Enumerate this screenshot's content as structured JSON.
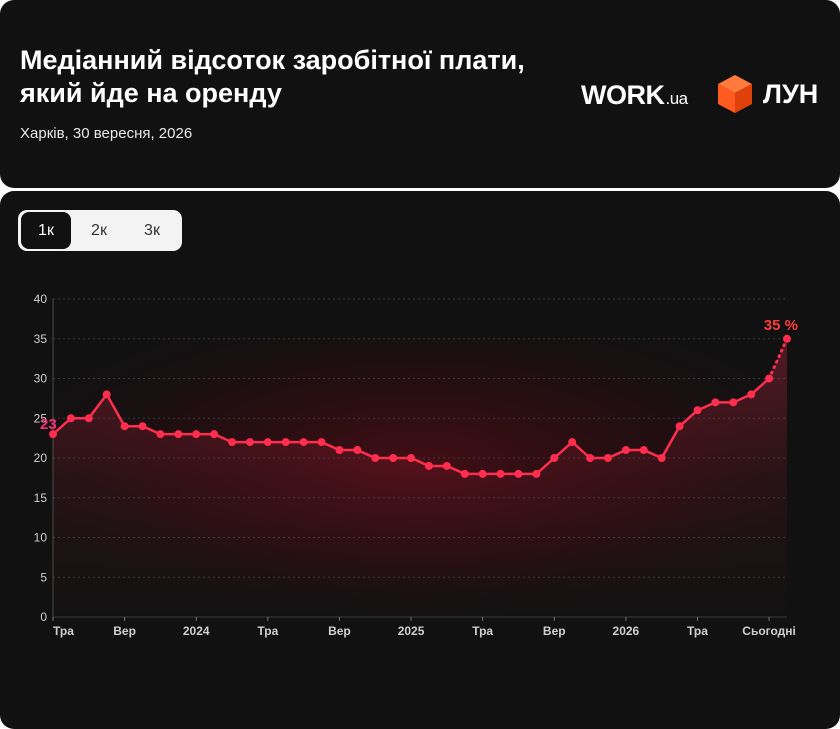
{
  "header": {
    "title": "Медіанний відсоток заробітної плати, який йде на оренду",
    "subtitle": "Харків, 30 вересня, 2026",
    "logo_work_main": "WORK",
    "logo_work_suffix": ".ua",
    "logo_lun": "ЛУН"
  },
  "tabs": [
    {
      "label": "1к",
      "active": true
    },
    {
      "label": "2к",
      "active": false
    },
    {
      "label": "3к",
      "active": false
    }
  ],
  "colors": {
    "background": "#121111",
    "line": "#ff2e4f",
    "start_label": "#ff2e7a",
    "end_label": "#ff3b3b",
    "lun_orange": "#ff5a1f"
  },
  "chart_data": {
    "type": "line",
    "title": "",
    "xlabel": "",
    "ylabel": "",
    "ylim": [
      0,
      40
    ],
    "yticks": [
      0,
      5,
      10,
      15,
      20,
      25,
      30,
      35,
      40
    ],
    "grid": true,
    "x_tick_labels": [
      {
        "i": 0,
        "label": "Тра"
      },
      {
        "i": 4,
        "label": "Вер"
      },
      {
        "i": 8,
        "label": "2024"
      },
      {
        "i": 12,
        "label": "Тра"
      },
      {
        "i": 16,
        "label": "Вер"
      },
      {
        "i": 20,
        "label": "2025"
      },
      {
        "i": 24,
        "label": "Тра"
      },
      {
        "i": 28,
        "label": "Вер"
      },
      {
        "i": 32,
        "label": "2026"
      },
      {
        "i": 36,
        "label": "Тра"
      },
      {
        "i": 40,
        "label": "Сьогодні"
      }
    ],
    "series": [
      {
        "values": [
          23,
          25,
          25,
          28,
          24,
          24,
          23,
          23,
          23,
          23,
          22,
          22,
          22,
          22,
          22,
          22,
          21,
          21,
          20,
          20,
          20,
          19,
          19,
          18,
          18,
          18,
          18,
          18,
          20,
          22,
          20,
          20,
          21,
          21,
          20,
          24,
          26,
          27,
          27,
          28,
          30,
          35
        ],
        "dotted_last_segment": true
      }
    ],
    "annotations": [
      {
        "i": 0,
        "text": "23"
      },
      {
        "i": 41,
        "text": "35 %"
      }
    ]
  }
}
